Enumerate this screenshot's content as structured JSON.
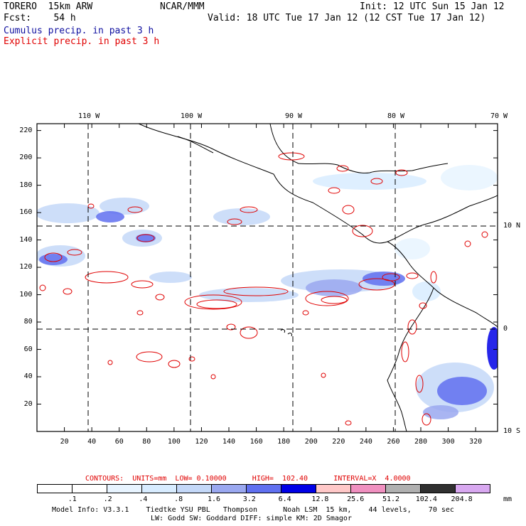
{
  "header": {
    "model": "TORERO  15km ARW",
    "fcst": "Fcst:    54 h",
    "org": "NCAR/MMM",
    "init": "Init: 12 UTC Sun 15 Jan 12",
    "valid": "Valid: 18 UTC Tue 17 Jan 12 (12 CST Tue 17 Jan 12)",
    "line1": "Cumulus precip. in past 3 h",
    "line2": "Explicit precip. in past 3 h"
  },
  "map": {
    "top_lon_labels": [
      "110 W",
      "100 W",
      "90 W",
      "80 W",
      "70 W"
    ],
    "right_lat_labels": [
      "10 N",
      "0",
      "10 S"
    ],
    "x_ticks": [
      "20",
      "40",
      "60",
      "80",
      "100",
      "120",
      "140",
      "160",
      "180",
      "200",
      "220",
      "240",
      "260",
      "280",
      "300",
      "320"
    ],
    "y_ticks": [
      "20",
      "40",
      "60",
      "80",
      "100",
      "120",
      "140",
      "160",
      "180",
      "200",
      "220"
    ],
    "x_range": [
      0,
      336
    ],
    "y_range": [
      0,
      225
    ]
  },
  "colors": {
    "cumulus": "#1010a0",
    "explicit": "#e00000",
    "contour": "#e00000"
  },
  "legend": {
    "contours_text": "CONTOURS:  UNITS=mm  LOW= 0.10000      HIGH=  102.40      INTERVAL=X  4.0000",
    "labels": [
      ".1",
      ".2",
      ".4",
      ".8",
      "1.6",
      "3.2",
      "6.4",
      "12.8",
      "25.6",
      "51.2",
      "102.4",
      "204.8"
    ],
    "colors": [
      "#ffffff",
      "#ffffff",
      "#e8f4ff",
      "#d8ecff",
      "#c4d8f8",
      "#9aa8f0",
      "#6070f0",
      "#0000e6",
      "#ffc8c8",
      "#f090c0",
      "#b0b0b0",
      "#303030",
      "#d8a8f0"
    ],
    "units": "mm"
  },
  "footer": {
    "line1": "Model Info: V3.3.1    Tiedtke YSU PBL   Thompson      Noah LSM  15 km,    44 levels,    70 sec",
    "line2": "LW: Godd SW: Goddard DIFF: simple KM: 2D Smagor"
  }
}
